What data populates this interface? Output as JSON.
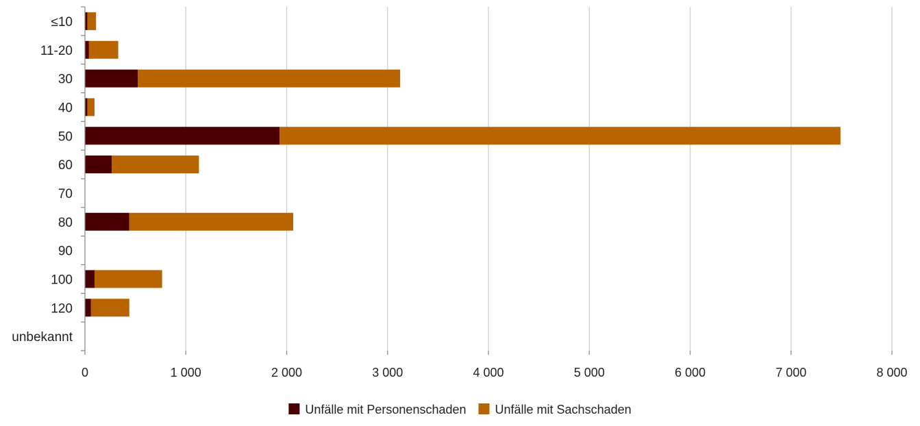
{
  "chart_data": {
    "type": "bar",
    "orientation": "horizontal",
    "stacked": true,
    "categories": [
      "≤10",
      "11-20",
      "30",
      "40",
      "50",
      "60",
      "70",
      "80",
      "90",
      "100",
      "120",
      "unbekannt"
    ],
    "series": [
      {
        "name": "Unfälle mit Personenschaden",
        "color": "#4a0000",
        "values": [
          25,
          40,
          525,
          25,
          1930,
          265,
          0,
          440,
          0,
          95,
          60,
          0
        ]
      },
      {
        "name": "Unfälle mit Sachschaden",
        "color": "#b86400",
        "values": [
          85,
          290,
          2600,
          70,
          5560,
          865,
          0,
          1625,
          0,
          670,
          380,
          0
        ]
      }
    ],
    "xlim": [
      0,
      8000
    ],
    "xticks": [
      0,
      1000,
      2000,
      3000,
      4000,
      5000,
      6000,
      7000,
      8000
    ],
    "xtick_labels": [
      "0",
      "1 000",
      "2 000",
      "3 000",
      "4 000",
      "5 000",
      "6 000",
      "7 000",
      "8 000"
    ],
    "title": "",
    "xlabel": "",
    "ylabel": "",
    "grid": "vertical",
    "legend_position": "bottom"
  }
}
